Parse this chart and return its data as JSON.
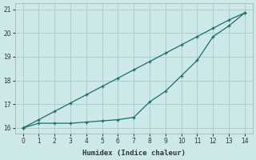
{
  "xlabel": "Humidex (Indice chaleur)",
  "x": [
    0,
    1,
    2,
    3,
    4,
    5,
    6,
    7,
    8,
    9,
    10,
    11,
    12,
    13,
    14
  ],
  "upper_y": [
    16.0,
    16.35,
    16.7,
    17.05,
    17.4,
    17.75,
    18.1,
    18.45,
    18.8,
    19.15,
    19.5,
    19.85,
    20.2,
    20.55,
    20.85
  ],
  "lower_y": [
    16.0,
    16.2,
    16.2,
    16.2,
    16.25,
    16.3,
    16.35,
    16.45,
    17.1,
    17.55,
    18.2,
    18.85,
    19.85,
    20.3,
    20.85
  ],
  "background_color": "#cce8e8",
  "line_color": "#1a6e6a",
  "grid_color": "#aacfcf",
  "ylim": [
    15.75,
    21.25
  ],
  "xlim": [
    -0.5,
    14.5
  ],
  "yticks": [
    16,
    17,
    18,
    19,
    20,
    21
  ],
  "xticks": [
    0,
    1,
    2,
    3,
    4,
    5,
    6,
    7,
    8,
    9,
    10,
    11,
    12,
    13,
    14
  ]
}
